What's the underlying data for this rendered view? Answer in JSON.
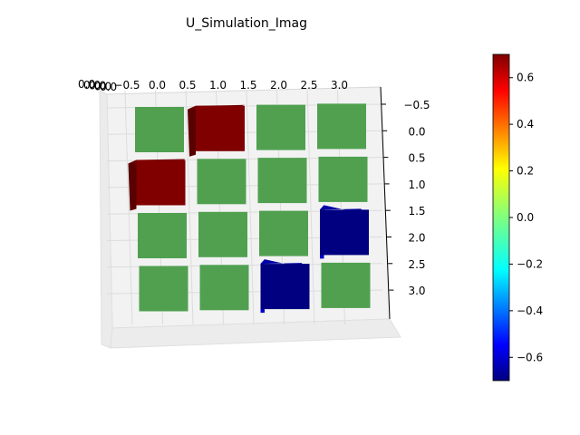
{
  "chart_data": {
    "type": "bar3d",
    "title": "U_Simulation_Imag",
    "x_ticks": [
      "−0.5",
      "0.0",
      "0.5",
      "1.0",
      "1.5",
      "2.0",
      "2.5",
      "3.0"
    ],
    "y_ticks": [
      "−0.5",
      "0.0",
      "0.5",
      "1.0",
      "1.5",
      "2.0",
      "2.5",
      "3.0"
    ],
    "z_tick_overlap_text": "0.0",
    "colorbar_ticks": [
      "0.6",
      "0.4",
      "0.2",
      "0.0",
      "−0.2",
      "−0.4",
      "−0.6"
    ],
    "colorbar_range": [
      -0.7,
      0.7
    ],
    "colormap": "jet",
    "matrix": [
      [
        0.0,
        0.7,
        0.0,
        0.0
      ],
      [
        0.7,
        0.0,
        0.0,
        0.0
      ],
      [
        0.0,
        0.0,
        0.0,
        -0.7
      ],
      [
        0.0,
        0.0,
        -0.7,
        0.0
      ]
    ]
  }
}
